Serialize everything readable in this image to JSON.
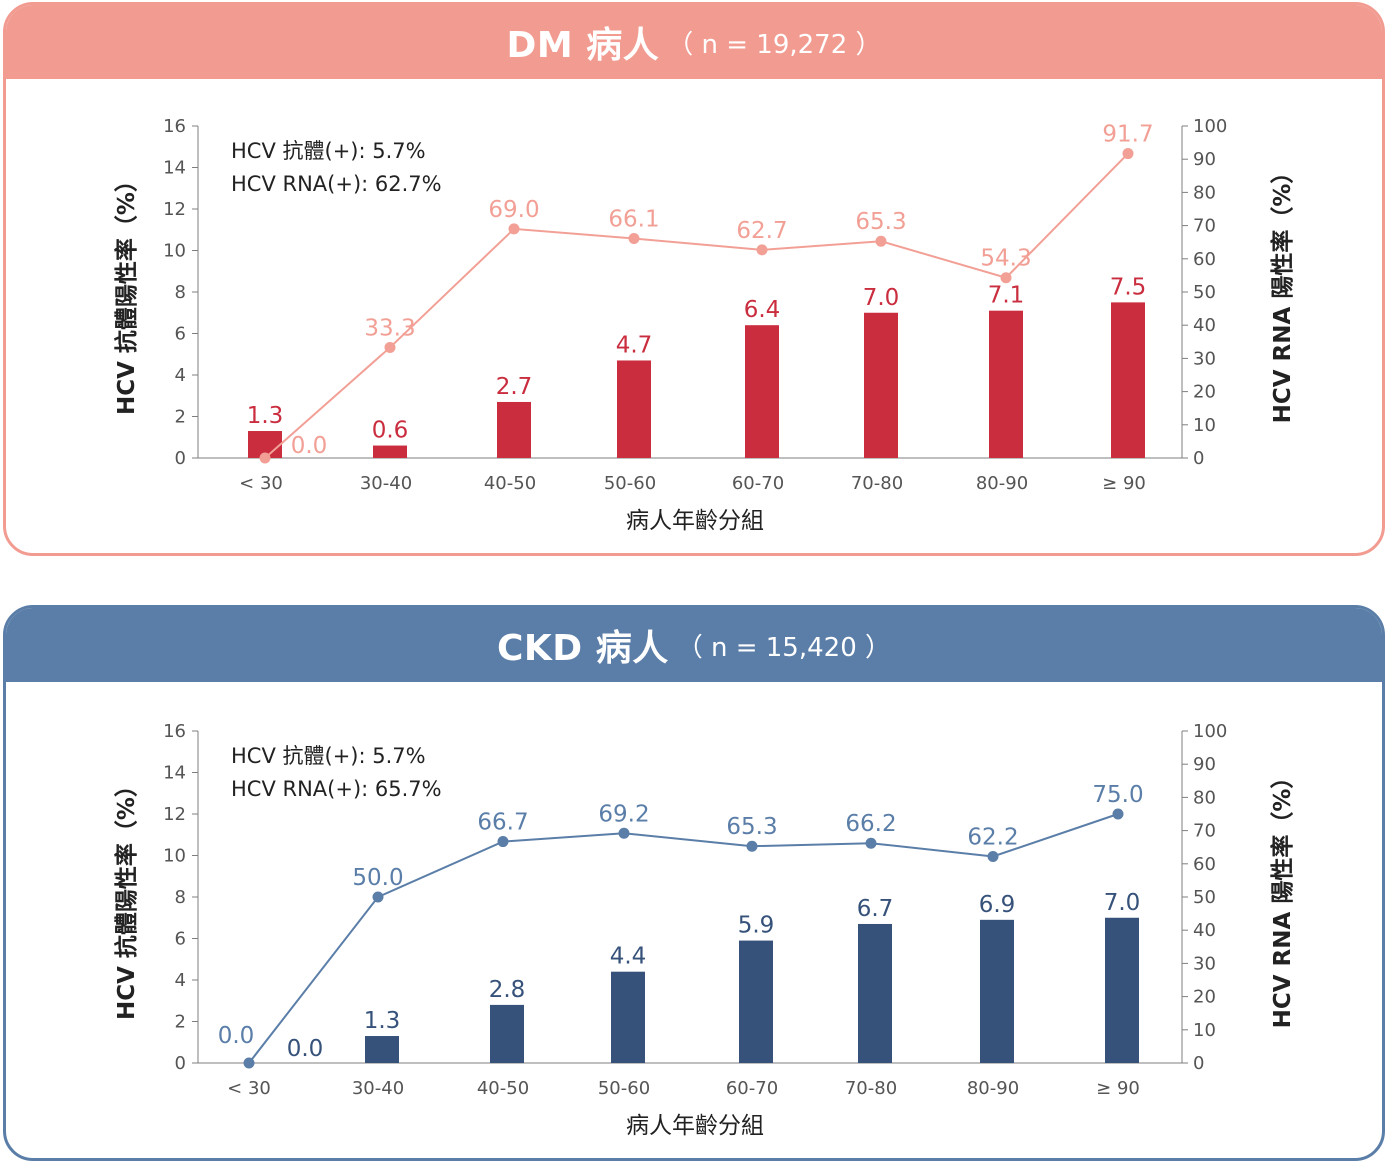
{
  "chart_data": [
    {
      "type": "bar+line",
      "title": "DM 病人",
      "subtitle": "（ n = 19,272 ）",
      "xlabel": "病人年齡分組",
      "ylabel_left": "HCV 抗體陽性率（%）",
      "ylabel_right": "HCV RNA 陽性率（%）",
      "ylim_left": [
        0,
        16
      ],
      "ylim_right": [
        0,
        100
      ],
      "yticks_left": [
        "0",
        "2",
        "4",
        "6",
        "8",
        "10",
        "12",
        "14",
        "16"
      ],
      "yticks_right": [
        "0",
        "10",
        "20",
        "30",
        "40",
        "50",
        "60",
        "70",
        "80",
        "90",
        "100"
      ],
      "categories": [
        "< 30",
        "30-40",
        "40-50",
        "50-60",
        "60-70",
        "70-80",
        "80-90",
        "≥ 90"
      ],
      "annotations": [
        "HCV 抗體(+): 5.7%",
        "HCV RNA(+): 62.7%"
      ],
      "series": [
        {
          "kind": "bar",
          "axis": "left",
          "values": [
            1.3,
            0.6,
            2.7,
            4.7,
            6.4,
            7.0,
            7.1,
            7.5
          ],
          "labels": [
            "1.3",
            "0.6",
            "2.7",
            "4.7",
            "6.4",
            "7.0",
            "7.1",
            "7.5"
          ]
        },
        {
          "kind": "line",
          "axis": "right",
          "values": [
            0.0,
            33.3,
            69.0,
            66.1,
            62.7,
            65.3,
            54.3,
            91.7
          ],
          "labels": [
            "0.0",
            "33.3",
            "69.0",
            "66.1",
            "62.7",
            "65.3",
            "54.3",
            "91.7"
          ]
        }
      ],
      "colors": {
        "bar": "#c92d3e",
        "bar_label": "#c92d3e",
        "line": "#f2a096",
        "line_label": "#f2a096",
        "header": "#f29b91"
      }
    },
    {
      "type": "bar+line",
      "title": "CKD 病人",
      "subtitle": "（ n = 15,420 ）",
      "xlabel": "病人年齡分組",
      "ylabel_left": "HCV 抗體陽性率（%）",
      "ylabel_right": "HCV RNA 陽性率（%）",
      "ylim_left": [
        0,
        16
      ],
      "ylim_right": [
        0,
        100
      ],
      "yticks_left": [
        "0",
        "2",
        "4",
        "6",
        "8",
        "10",
        "12",
        "14",
        "16"
      ],
      "yticks_right": [
        "0",
        "10",
        "20",
        "30",
        "40",
        "50",
        "60",
        "70",
        "80",
        "90",
        "100"
      ],
      "categories": [
        "< 30",
        "30-40",
        "40-50",
        "50-60",
        "60-70",
        "70-80",
        "80-90",
        "≥ 90"
      ],
      "annotations": [
        "HCV 抗體(+): 5.7%",
        "HCV RNA(+): 65.7%"
      ],
      "series": [
        {
          "kind": "bar",
          "axis": "left",
          "values": [
            0.0,
            1.3,
            2.8,
            4.4,
            5.9,
            6.7,
            6.9,
            7.0
          ],
          "labels": [
            "0.0",
            "1.3",
            "2.8",
            "4.4",
            "5.9",
            "6.7",
            "6.9",
            "7.0"
          ]
        },
        {
          "kind": "line",
          "axis": "right",
          "values": [
            0.0,
            50.0,
            66.7,
            69.2,
            65.3,
            66.2,
            62.2,
            75.0
          ],
          "labels": [
            "0.0",
            "50.0",
            "66.7",
            "69.2",
            "65.3",
            "66.2",
            "62.2",
            "75.0"
          ]
        }
      ],
      "colors": {
        "bar": "#36527a",
        "bar_label": "#36527a",
        "line": "#5a7ea8",
        "line_label": "#5a7ea8",
        "header": "#5a7ea8"
      }
    }
  ]
}
